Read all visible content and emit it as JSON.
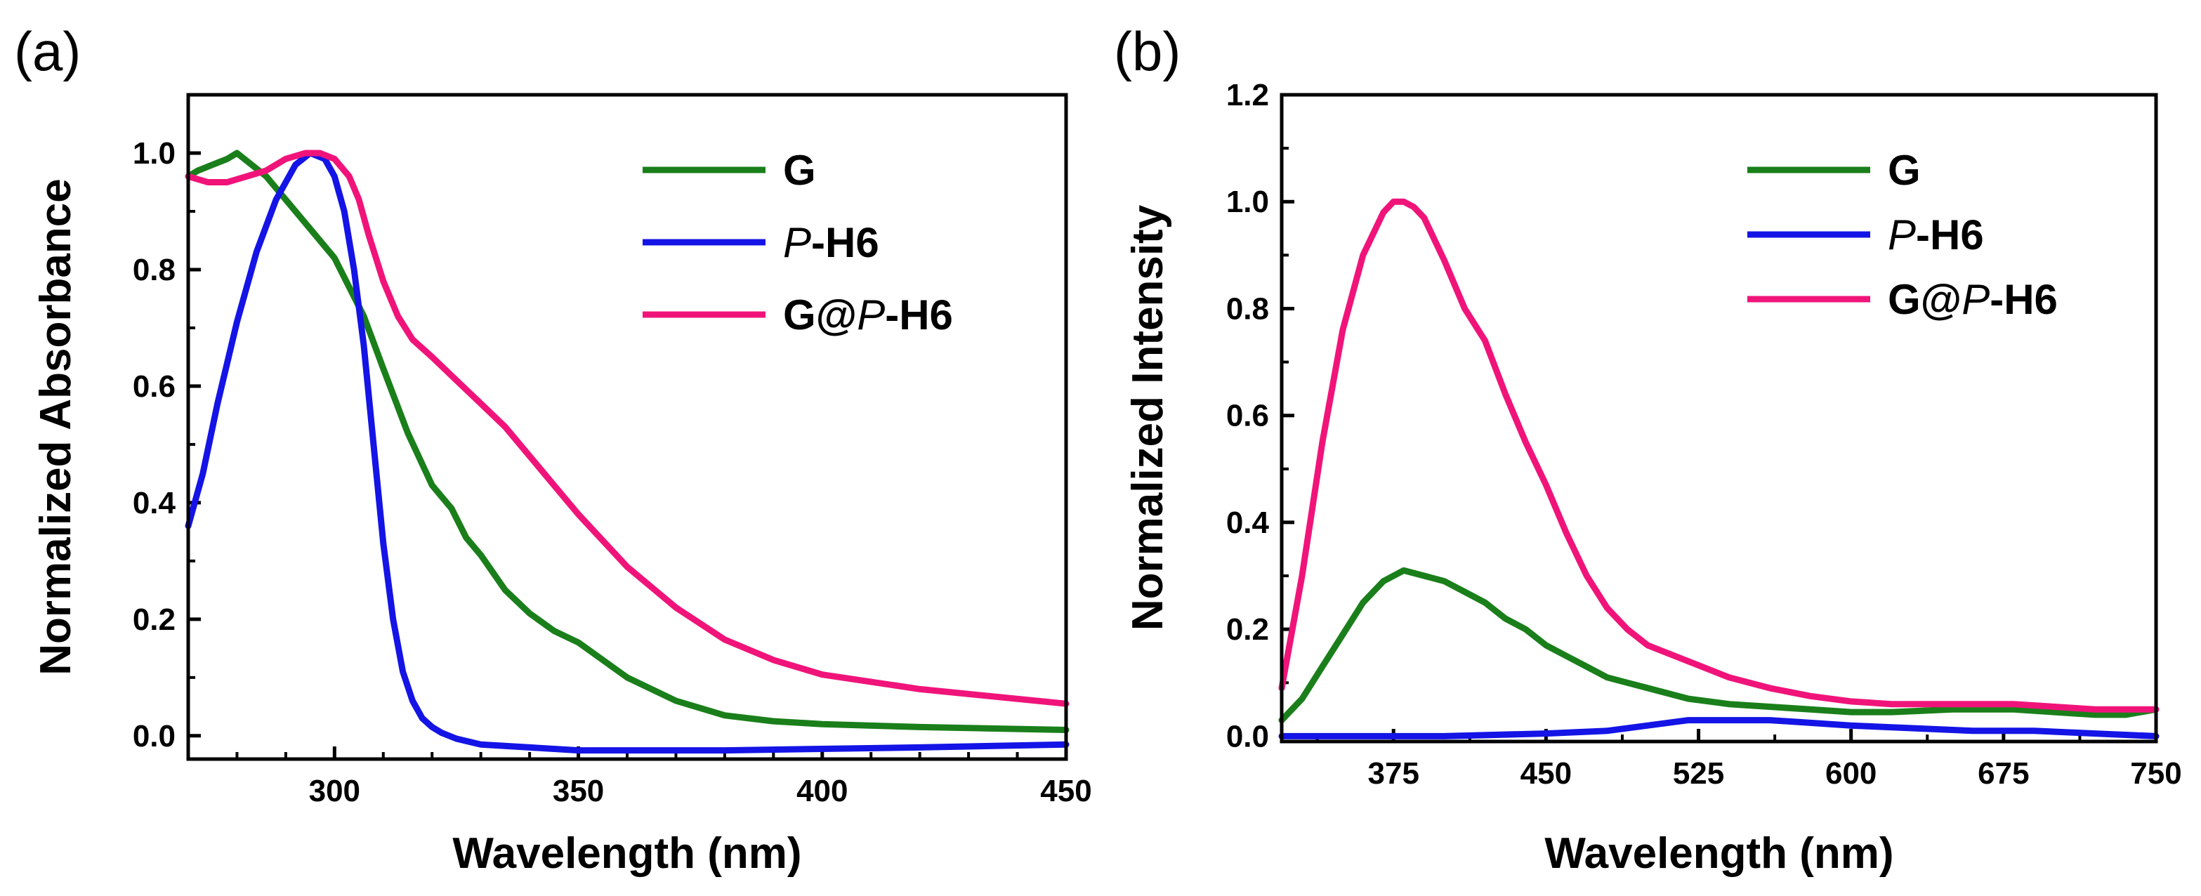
{
  "chart_data": [
    {
      "type": "line",
      "panel_label": "(a)",
      "title": "",
      "xlabel": "Wavelength (nm)",
      "ylabel": "Normalized Absorbance",
      "xlim": [
        270,
        450
      ],
      "ylim": [
        -0.04,
        1.1
      ],
      "xticks": [
        "300",
        "350",
        "400",
        "450"
      ],
      "yticks": [
        "0.0",
        "0.2",
        "0.4",
        "0.6",
        "0.8",
        "1.0"
      ],
      "legend_position": "top-right",
      "series": [
        {
          "name": "G",
          "name_plain": "G",
          "name_italic": "",
          "name_tail": "",
          "color": "#1a7f1a",
          "x": [
            270,
            272,
            275,
            278,
            280,
            283,
            286,
            290,
            293,
            296,
            300,
            303,
            306,
            310,
            315,
            320,
            324,
            327,
            330,
            335,
            340,
            345,
            350,
            360,
            370,
            380,
            390,
            400,
            420,
            450
          ],
          "y": [
            0.96,
            0.97,
            0.98,
            0.99,
            1.0,
            0.98,
            0.96,
            0.92,
            0.89,
            0.86,
            0.82,
            0.77,
            0.72,
            0.63,
            0.52,
            0.43,
            0.39,
            0.34,
            0.31,
            0.25,
            0.21,
            0.18,
            0.16,
            0.1,
            0.06,
            0.035,
            0.025,
            0.02,
            0.015,
            0.01
          ]
        },
        {
          "name": "P-H6",
          "name_plain": "",
          "name_italic": "P",
          "name_tail": "-H6",
          "color": "#1414e6",
          "x": [
            270,
            273,
            276,
            280,
            284,
            288,
            292,
            295,
            298,
            300,
            302,
            304,
            306,
            308,
            310,
            312,
            314,
            316,
            318,
            320,
            322,
            325,
            330,
            340,
            350,
            380,
            420,
            450
          ],
          "y": [
            0.36,
            0.45,
            0.57,
            0.71,
            0.83,
            0.92,
            0.98,
            1.0,
            0.99,
            0.96,
            0.9,
            0.8,
            0.67,
            0.5,
            0.33,
            0.2,
            0.11,
            0.06,
            0.03,
            0.015,
            0.005,
            -0.005,
            -0.015,
            -0.02,
            -0.025,
            -0.025,
            -0.02,
            -0.015
          ]
        },
        {
          "name": "G@P-H6",
          "name_plain": "G@",
          "name_italic": "P",
          "name_tail": "-H6",
          "color": "#f0147a",
          "x": [
            270,
            274,
            278,
            282,
            286,
            290,
            294,
            297,
            300,
            303,
            305,
            307,
            310,
            313,
            316,
            320,
            325,
            330,
            335,
            340,
            345,
            350,
            360,
            370,
            380,
            390,
            400,
            420,
            450
          ],
          "y": [
            0.96,
            0.95,
            0.95,
            0.96,
            0.97,
            0.99,
            1.0,
            1.0,
            0.99,
            0.96,
            0.92,
            0.86,
            0.78,
            0.72,
            0.68,
            0.65,
            0.61,
            0.57,
            0.53,
            0.48,
            0.43,
            0.38,
            0.29,
            0.22,
            0.165,
            0.13,
            0.105,
            0.08,
            0.055
          ]
        }
      ]
    },
    {
      "type": "line",
      "panel_label": "(b)",
      "title": "",
      "xlabel": "Wavelength (nm)",
      "ylabel": "Normalized Intensity",
      "xlim": [
        320,
        750
      ],
      "ylim": [
        -0.01,
        1.2
      ],
      "xticks": [
        "375",
        "450",
        "525",
        "600",
        "675",
        "750"
      ],
      "yticks": [
        "0.0",
        "0.2",
        "0.4",
        "0.6",
        "0.8",
        "1.0",
        "1.2"
      ],
      "legend_position": "top-right",
      "series": [
        {
          "name": "G",
          "name_plain": "G",
          "name_italic": "",
          "name_tail": "",
          "color": "#1a7f1a",
          "x": [
            320,
            330,
            340,
            350,
            360,
            370,
            380,
            390,
            400,
            410,
            420,
            430,
            440,
            450,
            460,
            470,
            480,
            490,
            500,
            520,
            540,
            560,
            580,
            600,
            620,
            650,
            680,
            700,
            720,
            735,
            750
          ],
          "y": [
            0.03,
            0.07,
            0.13,
            0.19,
            0.25,
            0.29,
            0.31,
            0.3,
            0.29,
            0.27,
            0.25,
            0.22,
            0.2,
            0.17,
            0.15,
            0.13,
            0.11,
            0.1,
            0.09,
            0.07,
            0.06,
            0.055,
            0.05,
            0.045,
            0.045,
            0.05,
            0.05,
            0.045,
            0.04,
            0.04,
            0.05
          ]
        },
        {
          "name": "P-H6",
          "name_plain": "",
          "name_italic": "P",
          "name_tail": "-H6",
          "color": "#1414e6",
          "x": [
            320,
            350,
            400,
            450,
            480,
            500,
            520,
            540,
            560,
            580,
            600,
            630,
            660,
            690,
            720,
            750
          ],
          "y": [
            0.0,
            0.0,
            0.0,
            0.005,
            0.01,
            0.02,
            0.03,
            0.03,
            0.03,
            0.025,
            0.02,
            0.015,
            0.01,
            0.01,
            0.005,
            0.0
          ]
        },
        {
          "name": "G@P-H6",
          "name_plain": "G@",
          "name_italic": "P",
          "name_tail": "-H6",
          "color": "#f0147a",
          "x": [
            320,
            330,
            340,
            350,
            360,
            370,
            375,
            380,
            385,
            390,
            400,
            410,
            420,
            430,
            440,
            450,
            460,
            470,
            480,
            490,
            500,
            520,
            540,
            560,
            580,
            600,
            620,
            650,
            680,
            700,
            720,
            735,
            750
          ],
          "y": [
            0.09,
            0.3,
            0.55,
            0.76,
            0.9,
            0.98,
            1.0,
            1.0,
            0.99,
            0.97,
            0.89,
            0.8,
            0.74,
            0.64,
            0.55,
            0.47,
            0.38,
            0.3,
            0.24,
            0.2,
            0.17,
            0.14,
            0.11,
            0.09,
            0.075,
            0.065,
            0.06,
            0.06,
            0.06,
            0.055,
            0.05,
            0.05,
            0.05
          ]
        }
      ]
    }
  ]
}
